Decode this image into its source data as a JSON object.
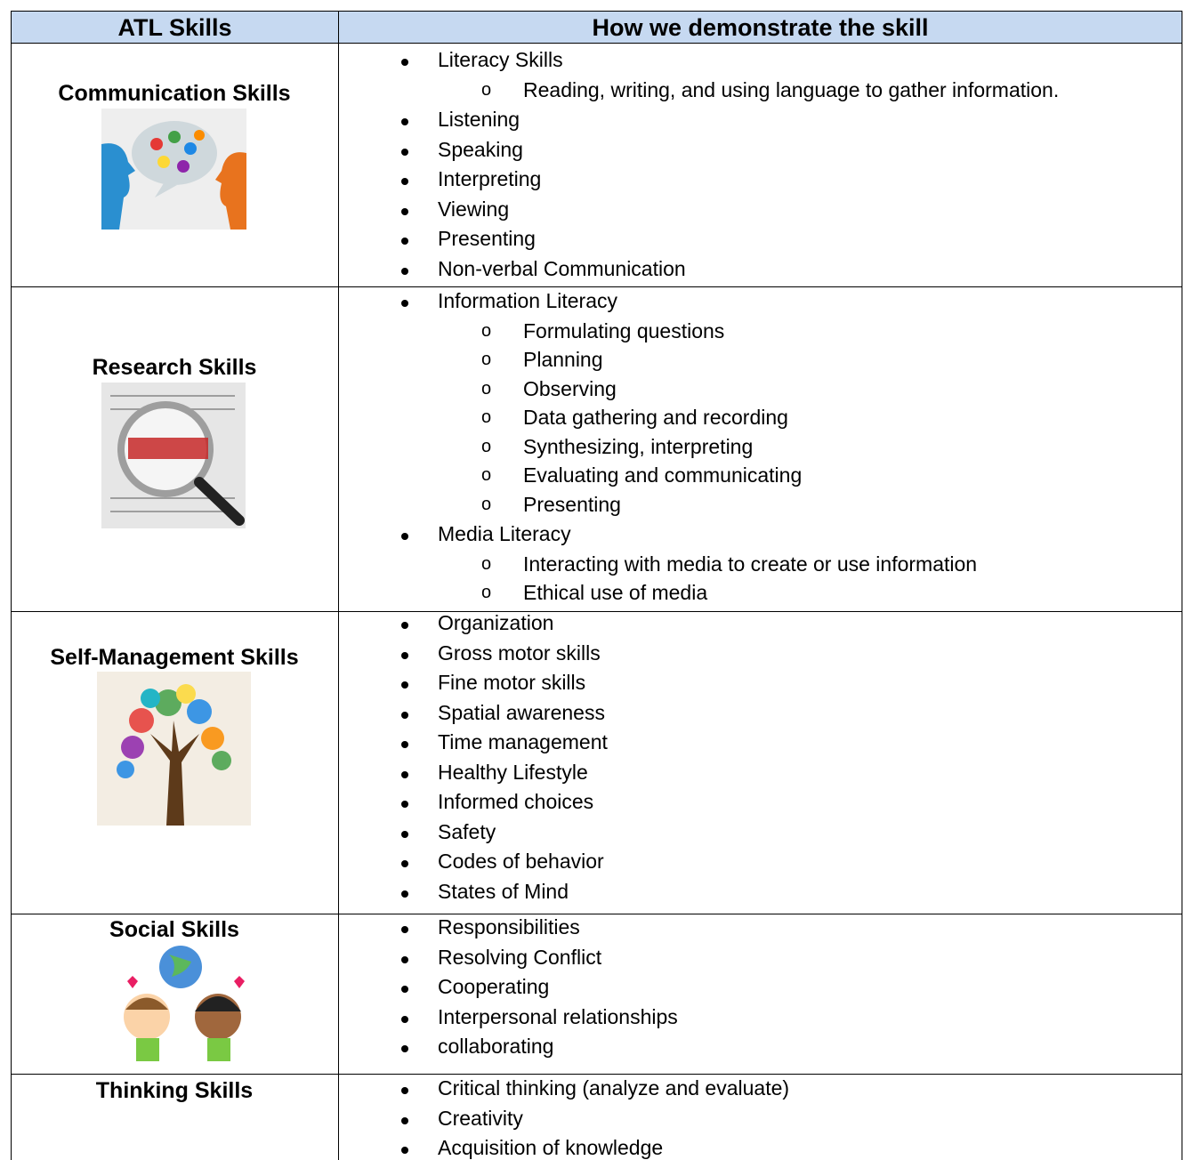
{
  "header": {
    "columns": [
      "ATL Skills",
      "How we demonstrate the skill"
    ]
  },
  "rows": [
    {
      "skill": "Communication Skills",
      "items": [
        {
          "text": "Literacy Skills",
          "sub": [
            "Reading, writing, and using language to gather information."
          ]
        },
        {
          "text": "Listening"
        },
        {
          "text": "Speaking"
        },
        {
          "text": "Interpreting"
        },
        {
          "text": "Viewing"
        },
        {
          "text": "Presenting"
        },
        {
          "text": "Non-verbal Communication"
        }
      ]
    },
    {
      "skill": "Research Skills",
      "items": [
        {
          "text": "Information Literacy",
          "sub": [
            "Formulating questions",
            "Planning",
            "Observing",
            "Data gathering and recording",
            "Synthesizing, interpreting",
            "Evaluating and communicating",
            "Presenting"
          ]
        },
        {
          "text": "Media Literacy",
          "sub": [
            "Interacting with media to create or use information",
            "Ethical use of media"
          ]
        }
      ]
    },
    {
      "skill": "Self-Management Skills",
      "items": [
        {
          "text": "Organization"
        },
        {
          "text": "Gross motor skills"
        },
        {
          "text": "Fine motor skills"
        },
        {
          "text": "Spatial awareness"
        },
        {
          "text": "Time management"
        },
        {
          "text": "Healthy Lifestyle"
        },
        {
          "text": "Informed choices"
        },
        {
          "text": "Safety"
        },
        {
          "text": "Codes of behavior"
        },
        {
          "text": "States of Mind"
        }
      ]
    },
    {
      "skill": "Social Skills",
      "items": [
        {
          "text": "Responsibilities"
        },
        {
          "text": "Resolving Conflict"
        },
        {
          "text": "Cooperating"
        },
        {
          "text": "Interpersonal relationships"
        },
        {
          "text": "collaborating"
        }
      ]
    },
    {
      "skill": "Thinking Skills",
      "items": [
        {
          "text": "Critical thinking (analyze and evaluate)"
        },
        {
          "text": "Creativity"
        },
        {
          "text": "Acquisition of knowledge"
        }
      ]
    }
  ]
}
